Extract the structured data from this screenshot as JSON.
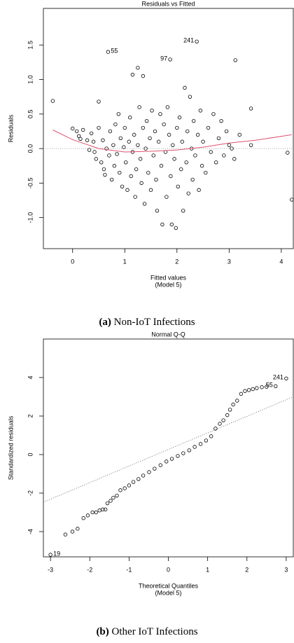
{
  "chart_data": [
    {
      "type": "scatter",
      "title": "Residuals vs Fitted",
      "xlabel": "Fitted values",
      "xlabel_sub": "(Model 5)",
      "ylabel": "Residuals",
      "caption_label": "(a)",
      "caption": "Non-IoT Infections",
      "xlim": [
        -0.56,
        4.23
      ],
      "ylim": [
        -1.45,
        2.03
      ],
      "xticks": [
        0,
        1,
        2,
        3,
        4
      ],
      "yticks": [
        {
          "value": -1.0,
          "label": "-1.0"
        },
        -0.5,
        {
          "value": 0.0,
          "label": "0.0"
        },
        0.5,
        {
          "value": 1.0,
          "label": "1.0"
        },
        1.5
      ],
      "points": {
        "x": [
          -0.38,
          0.0,
          0.08,
          0.12,
          0.15,
          0.2,
          0.28,
          0.32,
          0.36,
          0.4,
          0.42,
          0.45,
          0.5,
          0.5,
          0.55,
          0.58,
          0.6,
          0.62,
          0.65,
          0.7,
          0.72,
          0.75,
          0.78,
          0.8,
          0.82,
          0.85,
          0.88,
          0.9,
          0.92,
          0.95,
          0.98,
          1.0,
          1.02,
          1.05,
          1.08,
          1.1,
          1.12,
          1.15,
          1.15,
          1.18,
          1.2,
          1.22,
          1.25,
          1.25,
          1.28,
          1.3,
          1.32,
          1.35,
          1.35,
          1.38,
          1.4,
          1.42,
          1.45,
          1.48,
          1.5,
          1.52,
          1.55,
          1.58,
          1.6,
          1.62,
          1.65,
          1.68,
          1.7,
          1.72,
          1.75,
          1.78,
          1.8,
          1.82,
          1.85,
          1.88,
          1.9,
          1.92,
          1.95,
          1.98,
          2.0,
          2.02,
          2.05,
          2.08,
          2.1,
          2.12,
          2.15,
          2.18,
          2.2,
          2.22,
          2.25,
          2.28,
          2.3,
          2.32,
          2.35,
          2.4,
          2.42,
          2.45,
          2.48,
          2.5,
          2.55,
          2.6,
          2.65,
          2.7,
          2.75,
          2.8,
          2.85,
          2.9,
          2.95,
          3.0,
          3.05,
          3.1,
          3.12,
          3.2,
          3.42,
          3.42,
          4.12,
          4.2
        ],
        "y": [
          0.69,
          0.29,
          0.25,
          0.18,
          0.14,
          0.27,
          0.12,
          -0.02,
          0.22,
          0.1,
          -0.05,
          -0.15,
          0.3,
          0.68,
          -0.2,
          0.12,
          -0.3,
          -0.38,
          0.0,
          -0.1,
          0.25,
          -0.45,
          0.05,
          -0.25,
          0.35,
          -0.08,
          0.5,
          -0.35,
          0.15,
          -0.55,
          0.02,
          0.3,
          -0.2,
          -0.6,
          0.1,
          0.45,
          -0.4,
          1.07,
          -0.05,
          0.2,
          -0.7,
          -0.3,
          1.17,
          0.05,
          0.6,
          -0.15,
          -0.5,
          1.05,
          0.3,
          -0.8,
          0.0,
          0.4,
          -0.35,
          0.15,
          -0.6,
          0.55,
          -0.1,
          0.25,
          -0.45,
          -0.9,
          0.1,
          0.5,
          -0.25,
          -1.1,
          0.35,
          -0.05,
          -0.7,
          0.6,
          0.2,
          -0.4,
          -1.1,
          0.05,
          -0.15,
          -1.15,
          0.3,
          -0.55,
          0.45,
          -0.3,
          0.1,
          -0.9,
          0.88,
          -0.2,
          0.25,
          -0.65,
          0.75,
          0.0,
          -0.45,
          0.4,
          -0.1,
          0.2,
          -0.6,
          0.55,
          -0.25,
          0.1,
          -0.35,
          0.3,
          -0.05,
          0.5,
          -0.2,
          0.15,
          0.4,
          -0.1,
          0.25,
          0.05,
          0.0,
          -0.15,
          1.28,
          0.2,
          0.58,
          0.05,
          -0.06,
          -0.74
        ]
      },
      "labeled_points": {
        "x": [
          0.68,
          1.87,
          2.38
        ],
        "y": [
          1.4,
          1.29,
          1.55
        ],
        "labels": [
          "55",
          "97",
          "241"
        ]
      },
      "hline": 0,
      "smooth": {
        "color": "#df536b",
        "x": [
          -0.38,
          0.0,
          0.5,
          1.0,
          1.5,
          2.0,
          2.5,
          3.0,
          3.5,
          4.2
        ],
        "y": [
          0.27,
          0.13,
          0.0,
          -0.05,
          -0.04,
          -0.02,
          0.02,
          0.08,
          0.12,
          0.2
        ]
      }
    },
    {
      "type": "scatter",
      "title": "Normal Q-Q",
      "xlabel": "Theoretical Quantiles",
      "xlabel_sub": "(Model 5)",
      "ylabel": "Standardized residuals",
      "caption_label": "(b)",
      "caption": "Other IoT Infections",
      "xlim": [
        -3.18,
        3.18
      ],
      "ylim": [
        -5.31,
        6.0
      ],
      "xticks": [
        -3,
        -2,
        -1,
        0,
        1,
        2,
        3
      ],
      "yticks": [
        -4,
        -2,
        0,
        2,
        4
      ],
      "points": {
        "x": [
          -2.62,
          -2.44,
          -2.31,
          -2.16,
          -2.05,
          -1.93,
          -1.84,
          -1.75,
          -1.67,
          -1.6,
          -1.55,
          -1.47,
          -1.4,
          -1.31,
          -1.22,
          -1.11,
          -1.0,
          -0.89,
          -0.76,
          -0.64,
          -0.49,
          -0.35,
          -0.2,
          -0.05,
          0.09,
          0.24,
          0.38,
          0.53,
          0.67,
          0.82,
          0.96,
          1.09,
          1.2,
          1.31,
          1.4,
          1.5,
          1.57,
          1.65,
          1.75,
          1.85,
          1.95,
          2.05,
          2.15,
          2.25,
          2.38,
          2.5
        ],
        "y": [
          -4.15,
          -4.0,
          -3.85,
          -3.3,
          -3.16,
          -3.0,
          -3.0,
          -2.9,
          -2.85,
          -2.85,
          -2.53,
          -2.4,
          -2.24,
          -2.13,
          -1.85,
          -1.75,
          -1.6,
          -1.42,
          -1.27,
          -1.09,
          -0.91,
          -0.73,
          -0.55,
          -0.36,
          -0.22,
          -0.07,
          0.07,
          0.22,
          0.4,
          0.55,
          0.73,
          0.95,
          1.35,
          1.6,
          1.78,
          2.05,
          2.33,
          2.6,
          2.8,
          3.15,
          3.3,
          3.35,
          3.4,
          3.45,
          3.5,
          3.52
        ]
      },
      "labeled_points": {
        "x": [
          -3.0,
          2.73,
          3.0
        ],
        "y": [
          -5.2,
          3.55,
          3.95
        ],
        "labels": [
          "19",
          "55",
          "241"
        ]
      },
      "reference_line": {
        "x": [
          -3.18,
          3.18
        ],
        "y": [
          -2.47,
          3.0
        ]
      }
    }
  ]
}
